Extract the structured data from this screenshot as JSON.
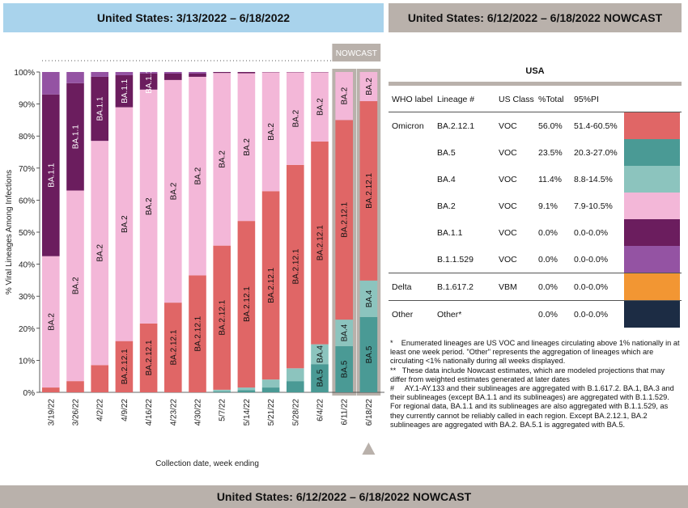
{
  "left_header": "United States: 3/13/2022 – 6/18/2022",
  "right_header": "United States: 6/12/2022 – 6/18/2022 NOWCAST",
  "footer": "United States: 6/12/2022 – 6/18/2022 NOWCAST",
  "nowcast_label": "NOWCAST",
  "colors": {
    "BA.2.12.1": "#e06666",
    "BA.5": "#4a9a95",
    "BA.4": "#8cc4be",
    "BA.2": "#f3b7d8",
    "BA.1.1": "#6b1d5e",
    "B.1.1.529": "#9453a3",
    "B.1.617.2": "#f29633",
    "Other": "#1c2c44",
    "left_header_bg": "#a9d3ec",
    "right_header_bg": "#b9b1ab"
  },
  "chart_data": {
    "type": "bar",
    "stacked": true,
    "xlabel": "Collection date, week ending",
    "ylabel": "% Viral Lineages Among Infections",
    "ylim": [
      0,
      100
    ],
    "yticks": [
      "0%",
      "10%",
      "20%",
      "30%",
      "40%",
      "50%",
      "60%",
      "70%",
      "80%",
      "90%",
      "100%"
    ],
    "categories": [
      "3/19/22",
      "3/26/22",
      "4/2/22",
      "4/9/22",
      "4/16/22",
      "4/23/22",
      "4/30/22",
      "5/7/22",
      "5/14/22",
      "5/21/22",
      "5/28/22",
      "6/4/22",
      "6/11/22",
      "6/18/22"
    ],
    "nowcast_categories": [
      "6/11/22",
      "6/18/22"
    ],
    "series": [
      {
        "name": "BA.5",
        "values": [
          0,
          0,
          0,
          0,
          0,
          0,
          0,
          0.3,
          0.7,
          1.5,
          3.5,
          8.8,
          14.4,
          23.5
        ]
      },
      {
        "name": "BA.4",
        "values": [
          0,
          0,
          0,
          0,
          0,
          0,
          0,
          0.5,
          0.8,
          2.5,
          4,
          6.2,
          8.3,
          11.4
        ]
      },
      {
        "name": "BA.2.12.1",
        "values": [
          1.5,
          3.5,
          8.5,
          16,
          21.5,
          28,
          36.5,
          45,
          52,
          58.8,
          63.5,
          63.3,
          62.3,
          56
        ]
      },
      {
        "name": "BA.2",
        "values": [
          41,
          59.5,
          70,
          73,
          73,
          69.5,
          62,
          53.9,
          46.1,
          37.1,
          28.9,
          21.6,
          15,
          9.1
        ]
      },
      {
        "name": "BA.1.1",
        "values": [
          50.5,
          33.5,
          20,
          10,
          5,
          2,
          1,
          0.3,
          0.4,
          0.1,
          0.1,
          0.1,
          0,
          0
        ]
      },
      {
        "name": "B.1.1.529",
        "values": [
          7,
          3.5,
          1.5,
          1,
          0.5,
          0.5,
          0.5,
          0,
          0,
          0,
          0,
          0,
          0,
          0
        ]
      }
    ],
    "bar_labels": [
      [
        "BA.2",
        "BA.1.1"
      ],
      [
        "BA.2",
        "BA.1.1"
      ],
      [
        "BA.2",
        "BA.1.1"
      ],
      [
        "BA.2.12.1",
        "BA.2",
        "BA.1.1"
      ],
      [
        "BA.2.12.1",
        "BA.2",
        "BA.1.1"
      ],
      [
        "BA.2.12.1",
        "BA.2"
      ],
      [
        "BA.2.12.1",
        "BA.2"
      ],
      [
        "BA.2.12.1",
        "BA.2"
      ],
      [
        "BA.2.12.1",
        "BA.2"
      ],
      [
        "BA.2.12.1",
        "BA.2"
      ],
      [
        "BA.2.12.1",
        "BA.2"
      ],
      [
        "BA.5",
        "BA.4",
        "BA.2.12.1",
        "BA.2"
      ],
      [
        "BA.5",
        "BA.4",
        "BA.2.12.1",
        "BA.2"
      ],
      [
        "BA.5",
        "BA.4",
        "BA.2.12.1",
        "BA.2"
      ]
    ]
  },
  "table": {
    "region": "USA",
    "headers": {
      "who": "WHO label",
      "lineage": "Lineage #",
      "class": "US Class",
      "pct": "%Total",
      "pi": "95%PI"
    },
    "rows": [
      {
        "who": "Omicron",
        "lineage": "BA.2.12.1",
        "class": "VOC",
        "pct": "56.0%",
        "pi": "51.4-60.5%"
      },
      {
        "who": "",
        "lineage": "BA.5",
        "class": "VOC",
        "pct": "23.5%",
        "pi": "20.3-27.0%"
      },
      {
        "who": "",
        "lineage": "BA.4",
        "class": "VOC",
        "pct": "11.4%",
        "pi": "8.8-14.5%"
      },
      {
        "who": "",
        "lineage": "BA.2",
        "class": "VOC",
        "pct": "9.1%",
        "pi": "7.9-10.5%"
      },
      {
        "who": "",
        "lineage": "BA.1.1",
        "class": "VOC",
        "pct": "0.0%",
        "pi": "0.0-0.0%"
      },
      {
        "who": "",
        "lineage": "B.1.1.529",
        "class": "VOC",
        "pct": "0.0%",
        "pi": "0.0-0.0%"
      },
      {
        "who": "Delta",
        "lineage": "B.1.617.2",
        "class": "VBM",
        "pct": "0.0%",
        "pi": "0.0-0.0%"
      },
      {
        "who": "Other",
        "lineage": "Other*",
        "class": "",
        "pct": "0.0%",
        "pi": "0.0-0.0%"
      }
    ]
  },
  "notes": [
    "*    Enumerated lineages are US VOC and lineages circulating above 1% nationally in at least one week period. \"Other\" represents the aggregation of lineages which are circulating <1% nationally during all weeks displayed.",
    "**   These data include Nowcast estimates, which are modeled projections that may differ from weighted estimates generated at later dates",
    "#     AY.1-AY.133 and their sublineages are aggregated with B.1.617.2. BA.1, BA.3 and their sublineages (except BA.1.1 and its sublineages) are aggregated with B.1.1.529. For regional data, BA.1.1 and its sublineages are also aggregated with B.1.1.529, as they currently cannot be reliably called in each region. Except BA.2.12.1, BA.2 sublineages are aggregated with BA.2. BA.5.1 is aggregated with BA.5."
  ]
}
